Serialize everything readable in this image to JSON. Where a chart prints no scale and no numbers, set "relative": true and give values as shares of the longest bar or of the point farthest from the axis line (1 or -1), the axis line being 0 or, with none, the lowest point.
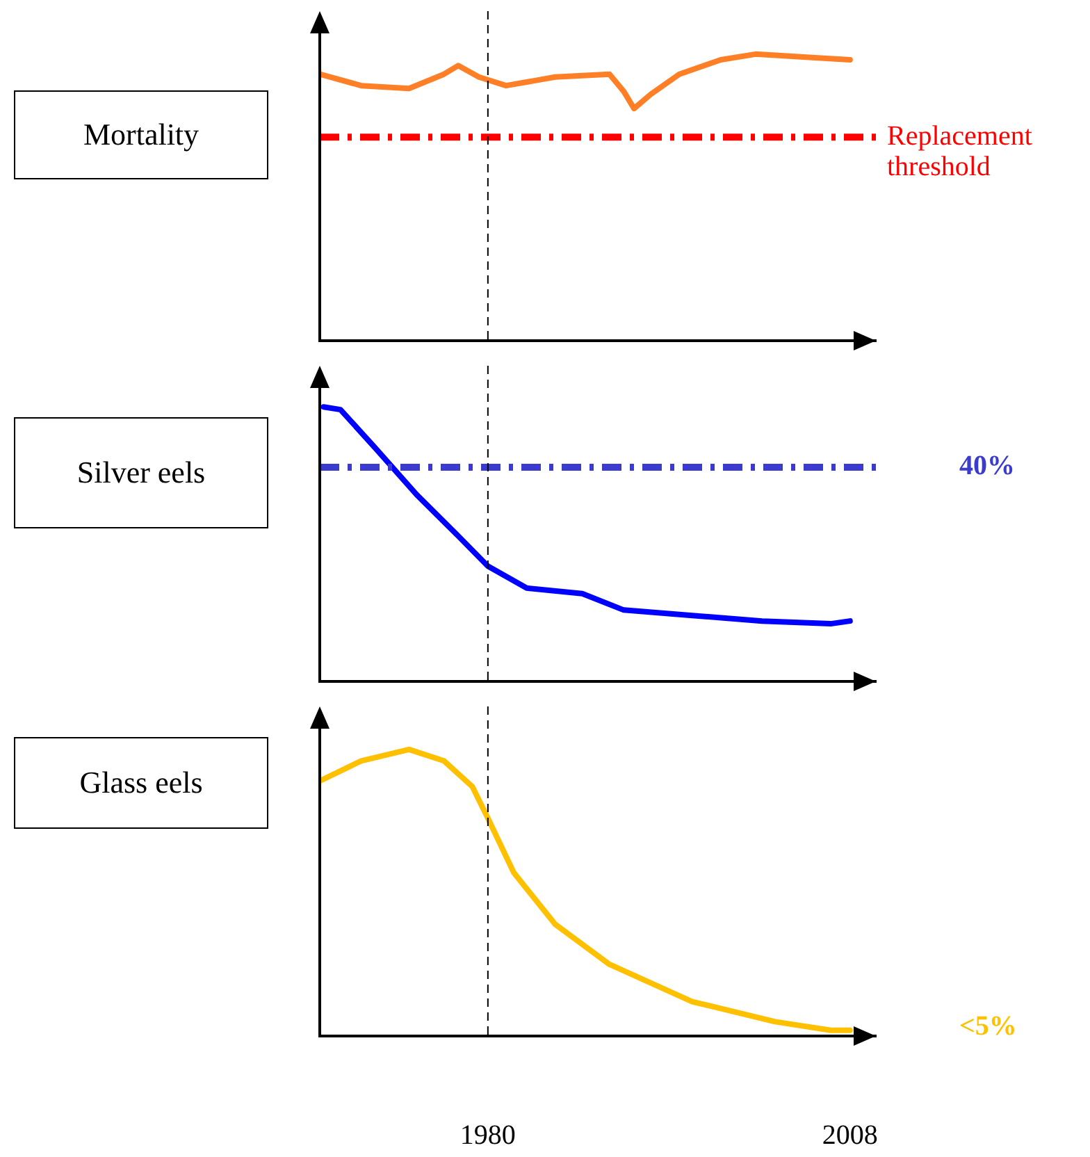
{
  "chart_data": [
    {
      "type": "line",
      "title": "Mortality",
      "relative": true,
      "xlim": [
        1967,
        2010
      ],
      "tick_labels": false,
      "grid": false,
      "legend": false,
      "marker": "none",
      "line_style": "solid",
      "series": [
        {
          "color": "#ff7f27",
          "x": [
            1967,
            1970.2,
            1973.9,
            1976.6,
            1977.7,
            1979.3,
            1981.4,
            1985.2,
            1989.4,
            1990.5,
            1991.3,
            1992.6,
            1994.8,
            1998,
            2000.7,
            2004.4,
            2008
          ],
          "values": [
            0.93,
            0.89,
            0.88,
            0.93,
            0.96,
            0.92,
            0.89,
            0.92,
            0.93,
            0.87,
            0.81,
            0.86,
            0.93,
            0.98,
            1,
            0.99,
            0.98
          ]
        }
      ],
      "ref_lines": [
        {
          "axis": "y",
          "value": 0.71,
          "label": "Replacement threshold",
          "color": "#ff0000",
          "line_style": "dashed"
        },
        {
          "axis": "x",
          "value": 1980,
          "color": "#000000",
          "line_style": "dashed"
        }
      ]
    },
    {
      "type": "line",
      "title": "Silver eels",
      "relative": true,
      "xlim": [
        1967,
        2010
      ],
      "tick_labels": false,
      "grid": false,
      "legend": false,
      "marker": "none",
      "line_style": "solid",
      "series": [
        {
          "color": "#0000ff",
          "x": [
            1967.3,
            1968.6,
            1971.3,
            1974.5,
            1977.7,
            1980,
            1983,
            1987.3,
            1990.5,
            1995.8,
            2001.2,
            2006.5,
            2008
          ],
          "values": [
            1,
            0.99,
            0.85,
            0.68,
            0.53,
            0.42,
            0.34,
            0.32,
            0.26,
            0.24,
            0.22,
            0.21,
            0.22
          ]
        }
      ],
      "annotations": [
        "40%"
      ],
      "ref_lines": [
        {
          "axis": "y",
          "value": 0.78,
          "color": "#3b3bd0",
          "line_style": "dashed"
        },
        {
          "axis": "x",
          "value": 1980,
          "color": "#000000",
          "line_style": "dashed"
        }
      ]
    },
    {
      "type": "line",
      "title": "Glass eels",
      "relative": true,
      "xlim": [
        1967,
        2010
      ],
      "xticks": [
        1980,
        2008
      ],
      "tick_labels": "x",
      "grid": false,
      "legend": false,
      "marker": "none",
      "line_style": "solid",
      "series": [
        {
          "color": "#ffc000",
          "x": [
            1967,
            1970.2,
            1973.9,
            1976.6,
            1978.8,
            1980,
            1982,
            1985.2,
            1989.4,
            1995.8,
            2002.2,
            2006.5,
            2008
          ],
          "values": [
            0.89,
            0.96,
            1,
            0.96,
            0.87,
            0.76,
            0.57,
            0.39,
            0.25,
            0.12,
            0.05,
            0.02,
            0.02
          ]
        }
      ],
      "annotations": [
        "<5%"
      ],
      "ref_lines": [
        {
          "axis": "x",
          "value": 1980,
          "color": "#000000",
          "line_style": "dashed"
        }
      ]
    }
  ]
}
